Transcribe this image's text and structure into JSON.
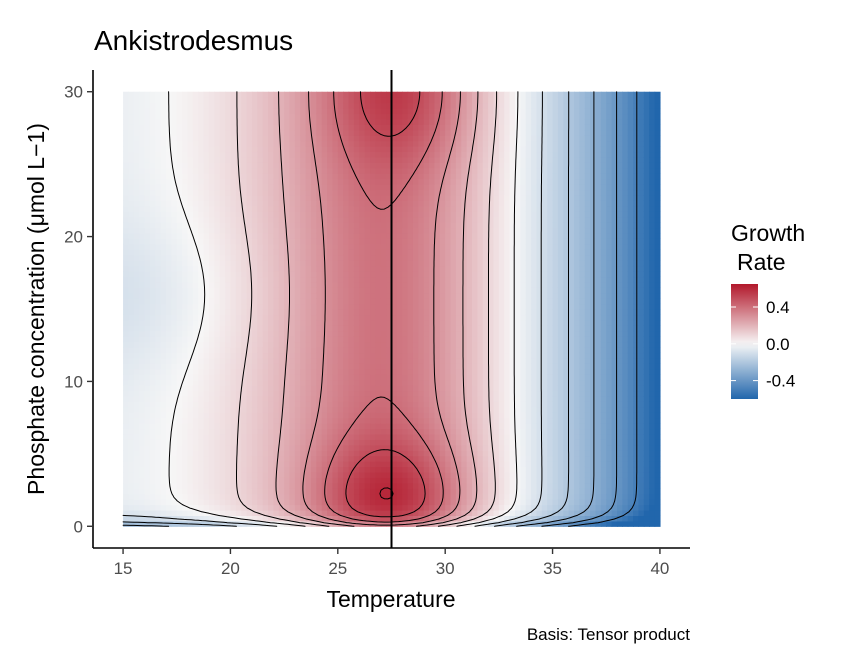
{
  "chart_data": {
    "type": "heatmap",
    "title": "Ankistrodesmus",
    "xlabel": "Temperature",
    "ylabel": "Phosphate concentration (μmol L−1)",
    "caption": "Basis: Tensor product",
    "xlim": [
      13.6,
      41.4
    ],
    "ylim": [
      -1.5,
      31.5
    ],
    "data_x_range": [
      15,
      40
    ],
    "data_y_range": [
      0,
      30
    ],
    "x_ticks": [
      15,
      20,
      25,
      30,
      35,
      40
    ],
    "y_ticks": [
      0,
      10,
      20,
      30
    ],
    "x_tick_labels": [
      "15",
      "20",
      "25",
      "30",
      "35",
      "40"
    ],
    "y_tick_labels": [
      "0",
      "10",
      "20",
      "30"
    ],
    "vline_x": 27.5,
    "colorscale": {
      "low_color": "#2166ac",
      "mid_color": "#f7f7f7",
      "high_color": "#b2182b",
      "limits": [
        -0.6,
        0.65
      ],
      "mid": 0.0
    },
    "legend": {
      "title_line1": "Growth",
      "title_line2": "Rate",
      "position": "right",
      "breaks": [
        0.4,
        0.0,
        -0.4
      ],
      "break_labels": [
        "0.4",
        "0.0",
        "-0.4"
      ]
    },
    "contours": [
      -0.5,
      -0.4,
      -0.3,
      -0.2,
      -0.1,
      0.0,
      0.1,
      0.2,
      0.3,
      0.4,
      0.5,
      0.6
    ],
    "surface_points": [
      {
        "temperature": 15,
        "phosphate": 16,
        "growth": -0.05
      },
      {
        "temperature": 27.5,
        "phosphate": 2,
        "growth": 0.62
      },
      {
        "temperature": 27.8,
        "phosphate": 30,
        "growth": 0.55
      },
      {
        "temperature": 27.5,
        "phosphate": 15,
        "growth": 0.32
      },
      {
        "temperature": 21,
        "phosphate": 16,
        "growth": 0.1
      },
      {
        "temperature": 34,
        "phosphate": 15,
        "growth": 0.05
      },
      {
        "temperature": 40,
        "phosphate": 15,
        "growth": -0.6
      },
      {
        "temperature": 40,
        "phosphate": 1,
        "growth": -0.5
      },
      {
        "temperature": 20,
        "phosphate": 0,
        "growth": -0.05
      }
    ]
  }
}
